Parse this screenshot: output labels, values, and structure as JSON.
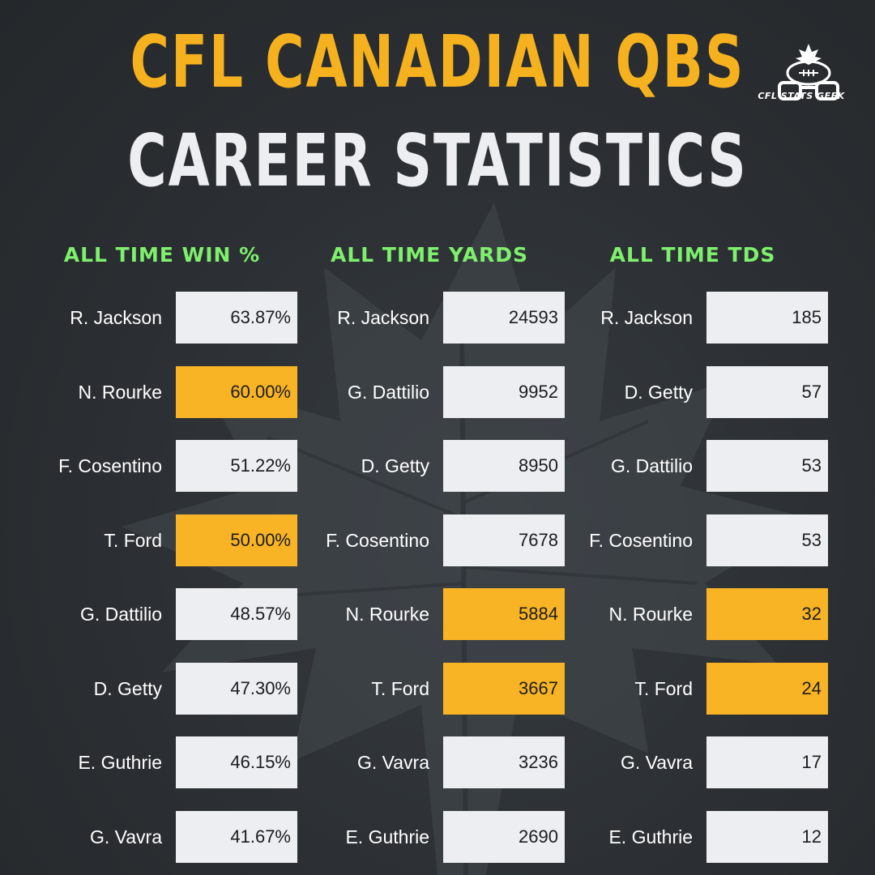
{
  "title_line1": "CFL CANADIAN QBS",
  "title_line2": "CAREER STATISTICS",
  "logo_text": "CFL STATS GEEK",
  "colors": {
    "accent_yellow": "#f8b424",
    "header_green": "#7ef06c",
    "background": "#2b2f33",
    "box": "#eceef1"
  },
  "chart_data": [
    {
      "type": "table",
      "title": "ALL TIME WIN %",
      "rows": [
        {
          "name": "R. Jackson",
          "value": "63.87%",
          "highlight": false
        },
        {
          "name": "N. Rourke",
          "value": "60.00%",
          "highlight": true
        },
        {
          "name": "F. Cosentino",
          "value": "51.22%",
          "highlight": false
        },
        {
          "name": "T. Ford",
          "value": "50.00%",
          "highlight": true
        },
        {
          "name": "G. Dattilio",
          "value": "48.57%",
          "highlight": false
        },
        {
          "name": "D. Getty",
          "value": "47.30%",
          "highlight": false
        },
        {
          "name": "E. Guthrie",
          "value": "46.15%",
          "highlight": false
        },
        {
          "name": "G. Vavra",
          "value": "41.67%",
          "highlight": false
        }
      ]
    },
    {
      "type": "table",
      "title": "ALL TIME YARDS",
      "rows": [
        {
          "name": "R. Jackson",
          "value": "24593",
          "highlight": false
        },
        {
          "name": "G. Dattilio",
          "value": "9952",
          "highlight": false
        },
        {
          "name": "D. Getty",
          "value": "8950",
          "highlight": false
        },
        {
          "name": "F. Cosentino",
          "value": "7678",
          "highlight": false
        },
        {
          "name": "N. Rourke",
          "value": "5884",
          "highlight": true
        },
        {
          "name": "T. Ford",
          "value": "3667",
          "highlight": true
        },
        {
          "name": "G. Vavra",
          "value": "3236",
          "highlight": false
        },
        {
          "name": "E. Guthrie",
          "value": "2690",
          "highlight": false
        }
      ]
    },
    {
      "type": "table",
      "title": "ALL TIME TDS",
      "rows": [
        {
          "name": "R. Jackson",
          "value": "185",
          "highlight": false
        },
        {
          "name": "D. Getty",
          "value": "57",
          "highlight": false
        },
        {
          "name": "G. Dattilio",
          "value": "53",
          "highlight": false
        },
        {
          "name": "F. Cosentino",
          "value": "53",
          "highlight": false
        },
        {
          "name": "N. Rourke",
          "value": "32",
          "highlight": true
        },
        {
          "name": "T. Ford",
          "value": "24",
          "highlight": true
        },
        {
          "name": "G. Vavra",
          "value": "17",
          "highlight": false
        },
        {
          "name": "E. Guthrie",
          "value": "12",
          "highlight": false
        }
      ]
    }
  ]
}
